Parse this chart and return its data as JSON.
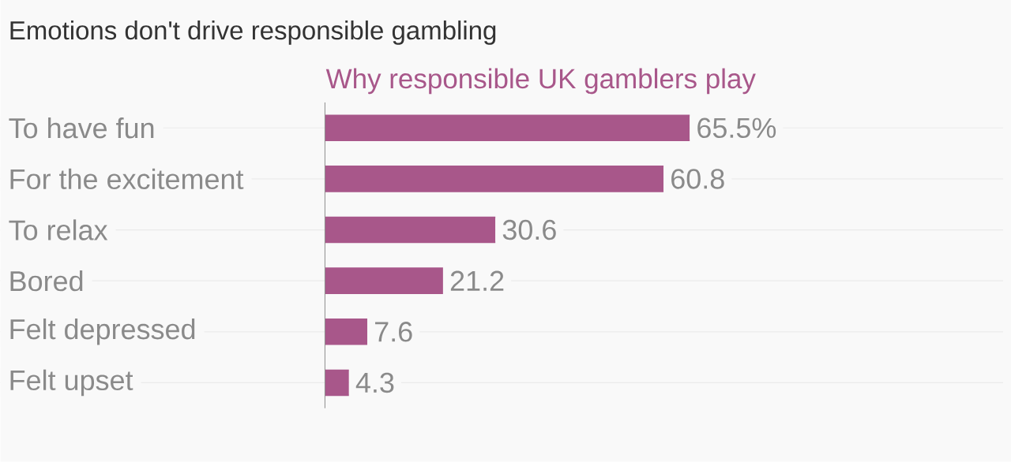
{
  "chart_data": {
    "type": "bar",
    "orientation": "horizontal",
    "title": "Emotions don't drive responsible gambling",
    "subtitle": "Why responsible UK gamblers play",
    "categories": [
      "To have fun",
      "For the excitement",
      "To relax",
      "Bored",
      "Felt depressed",
      "Felt upset"
    ],
    "values": [
      65.5,
      60.8,
      30.6,
      21.2,
      7.6,
      4.3
    ],
    "value_labels": [
      "65.5%",
      "60.8",
      "30.6",
      "21.2",
      "7.6",
      "4.3"
    ],
    "color": "#a8578a",
    "grid": "y"
  }
}
